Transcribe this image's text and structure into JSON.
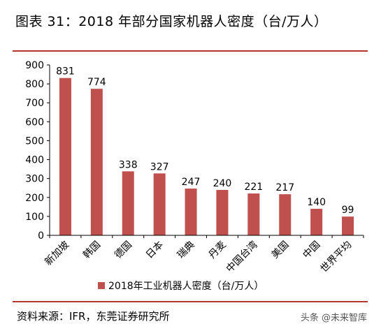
{
  "header": {
    "title": "图表 31：2018 年部分国家机器人密度（台/万人）"
  },
  "footer": {
    "source": "资料来源：IFR，东莞证券研究所",
    "watermark": "头条 @未来智库"
  },
  "colors": {
    "bar": "#c0504d",
    "rule": "#b5352b"
  },
  "chart_data": {
    "type": "bar",
    "categories": [
      "新加坡",
      "韩国",
      "德国",
      "日本",
      "瑞典",
      "丹麦",
      "中国台湾",
      "美国",
      "中国",
      "世界平均"
    ],
    "series": [
      {
        "name": "2018年工业机器人密度（台/万人）",
        "values": [
          831,
          774,
          338,
          327,
          247,
          240,
          221,
          217,
          140,
          99
        ]
      }
    ],
    "ylim": [
      0,
      900
    ],
    "yticks": [
      0,
      100,
      200,
      300,
      400,
      500,
      600,
      700,
      800,
      900
    ],
    "legend": "bottom",
    "grid": false
  }
}
